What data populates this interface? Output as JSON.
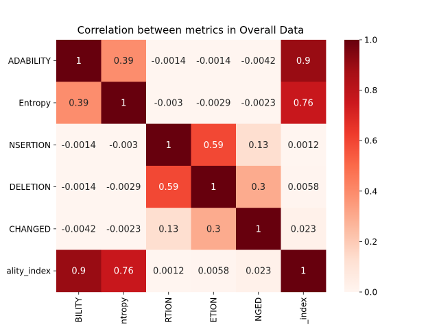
{
  "chart_data": {
    "type": "heatmap",
    "title": "Correlation between metrics in Overall Data",
    "row_labels": [
      "ADABILITY",
      "Entropy",
      "NSERTION",
      "DELETION",
      "CHANGED",
      "ality_index"
    ],
    "col_labels": [
      "BILITY",
      "ntropy",
      "RTION",
      "ETION",
      "NGED",
      "_index"
    ],
    "values": [
      [
        1,
        0.39,
        -0.0014,
        -0.0014,
        -0.0042,
        0.9
      ],
      [
        0.39,
        1,
        -0.003,
        -0.0029,
        -0.0023,
        0.76
      ],
      [
        -0.0014,
        -0.003,
        1,
        0.59,
        0.13,
        0.0012
      ],
      [
        -0.0014,
        -0.0029,
        0.59,
        1,
        0.3,
        0.0058
      ],
      [
        -0.0042,
        -0.0023,
        0.13,
        0.3,
        1,
        0.023
      ],
      [
        0.9,
        0.76,
        0.0012,
        0.0058,
        0.023,
        1
      ]
    ],
    "cell_labels": [
      [
        "1",
        "0.39",
        "-0.0014",
        "-0.0014",
        "-0.0042",
        "0.9"
      ],
      [
        "0.39",
        "1",
        "-0.003",
        "-0.0029",
        "-0.0023",
        "0.76"
      ],
      [
        "-0.0014",
        "-0.003",
        "1",
        "0.59",
        "0.13",
        "0.0012"
      ],
      [
        "-0.0014",
        "-0.0029",
        "0.59",
        "1",
        "0.3",
        "0.0058"
      ],
      [
        "-0.0042",
        "-0.0023",
        "0.13",
        "0.3",
        "1",
        "0.023"
      ],
      [
        "0.9",
        "0.76",
        "0.0012",
        "0.0058",
        "0.023",
        "1"
      ]
    ],
    "colorbar": {
      "colormap": "Reds",
      "range": [
        0.0,
        1.0
      ],
      "ticks": [
        "0.0",
        "0.2",
        "0.4",
        "0.6",
        "0.8",
        "1.0"
      ]
    }
  }
}
